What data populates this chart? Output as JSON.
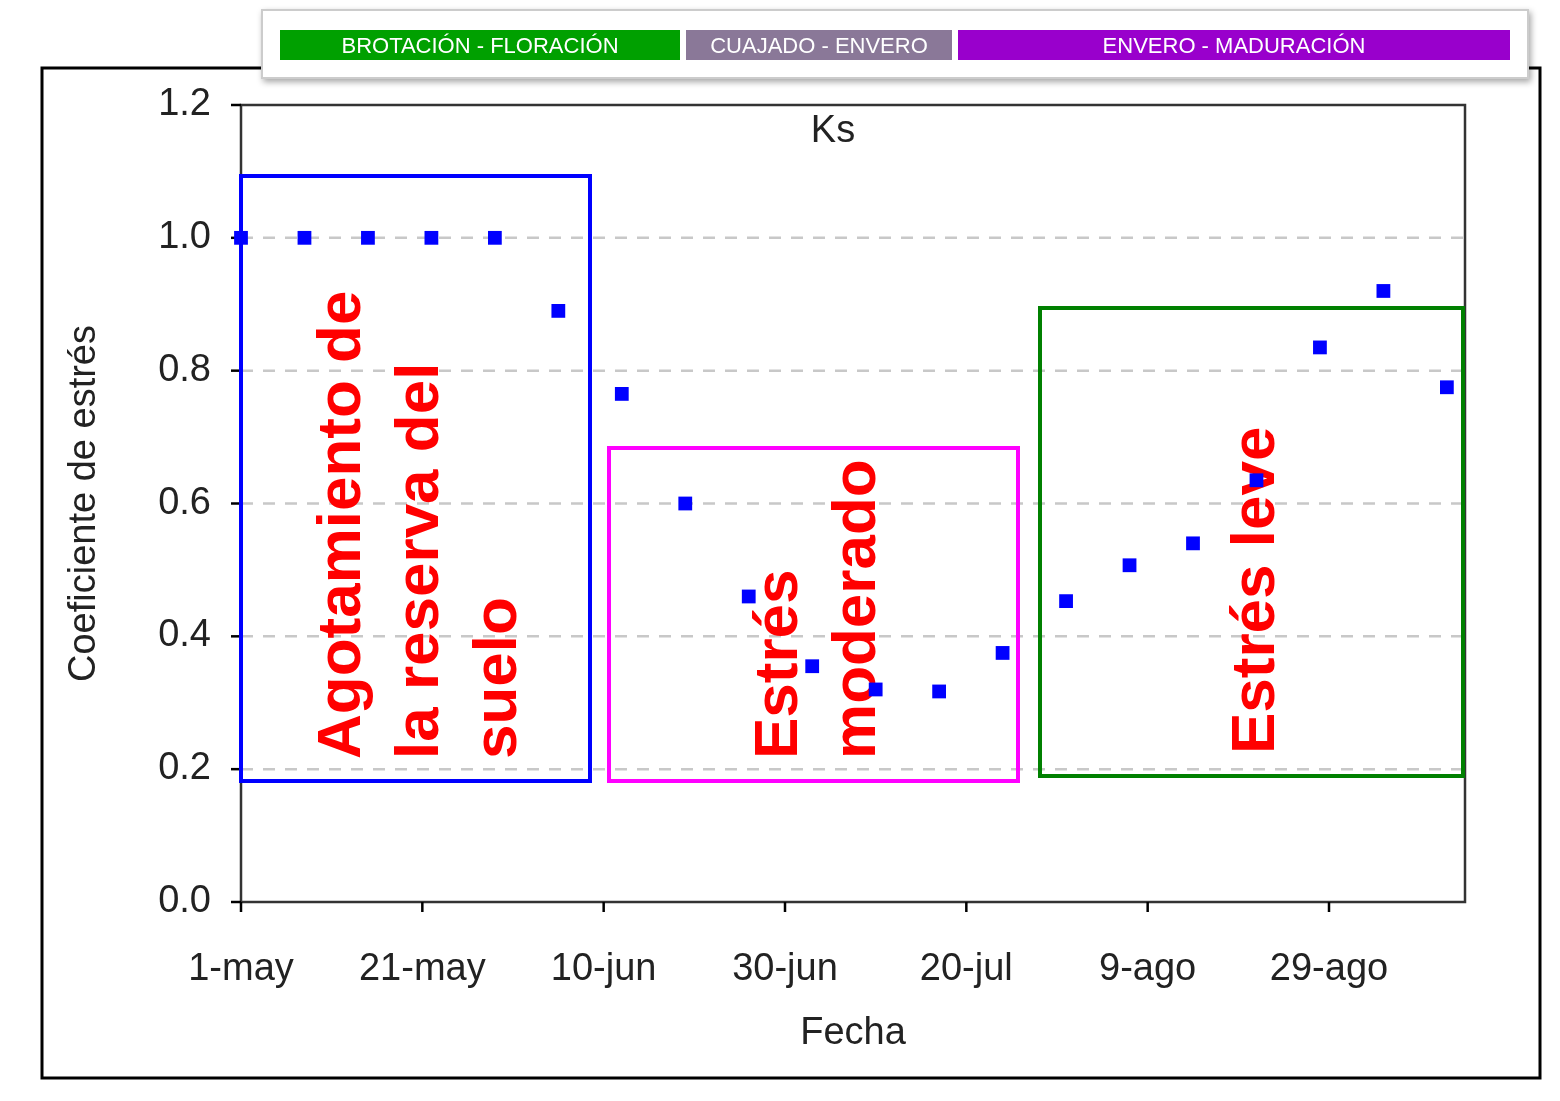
{
  "chart_data": {
    "type": "scatter",
    "title": "Ks",
    "xlabel": "Fecha",
    "ylabel": "Coeficiente de estrés",
    "x": [
      "--05-01",
      "--05-08",
      "--05-15",
      "--05-22",
      "--05-29",
      "--06-05",
      "--06-12",
      "--06-19",
      "--06-26",
      "--07-03",
      "--07-10",
      "--07-17",
      "--07-24",
      "--07-31",
      "--08-07",
      "--08-14",
      "--08-21",
      "--08-28",
      "--09-04",
      "--09-11"
    ],
    "series": [
      {
        "color": "#0000ff",
        "values": [
          1.0,
          1.0,
          1.0,
          1.0,
          1.0,
          0.89,
          0.765,
          0.6,
          0.46,
          0.355,
          0.32,
          0.317,
          0.375,
          0.453,
          0.507,
          0.54,
          0.635,
          0.835,
          0.92,
          0.775
        ]
      }
    ],
    "marker": "square",
    "xlim": [
      "--05-01",
      "--09-13"
    ],
    "xticks": [
      {
        "value": "--05-01",
        "label": "1-may"
      },
      {
        "value": "--05-21",
        "label": "21-may"
      },
      {
        "value": "--06-10",
        "label": "10-jun"
      },
      {
        "value": "--06-30",
        "label": "30-jun"
      },
      {
        "value": "--07-20",
        "label": "20-jul"
      },
      {
        "value": "--08-09",
        "label": "9-ago"
      },
      {
        "value": "--08-29",
        "label": "29-ago"
      }
    ],
    "ylim": [
      0,
      1.2
    ],
    "yticks": [
      {
        "value": 0,
        "label": "0.0"
      },
      {
        "value": 0.2,
        "label": "0.2"
      },
      {
        "value": 0.4,
        "label": "0.4"
      },
      {
        "value": 0.6,
        "label": "0.6"
      },
      {
        "value": 0.8,
        "label": "0.8"
      },
      {
        "value": 1,
        "label": "1.0"
      },
      {
        "value": 1.2,
        "label": "1.2"
      }
    ],
    "grid": "y",
    "annotations": [
      "BROTACIÓN - FLORACIÓN",
      "CUAJADO - ENVERO",
      "ENVERO - MADURACIÓN",
      "Agotamiento de\nla reserva del\nsuelo",
      "Estrés\nmoderado",
      "Estrés leve"
    ]
  }
}
